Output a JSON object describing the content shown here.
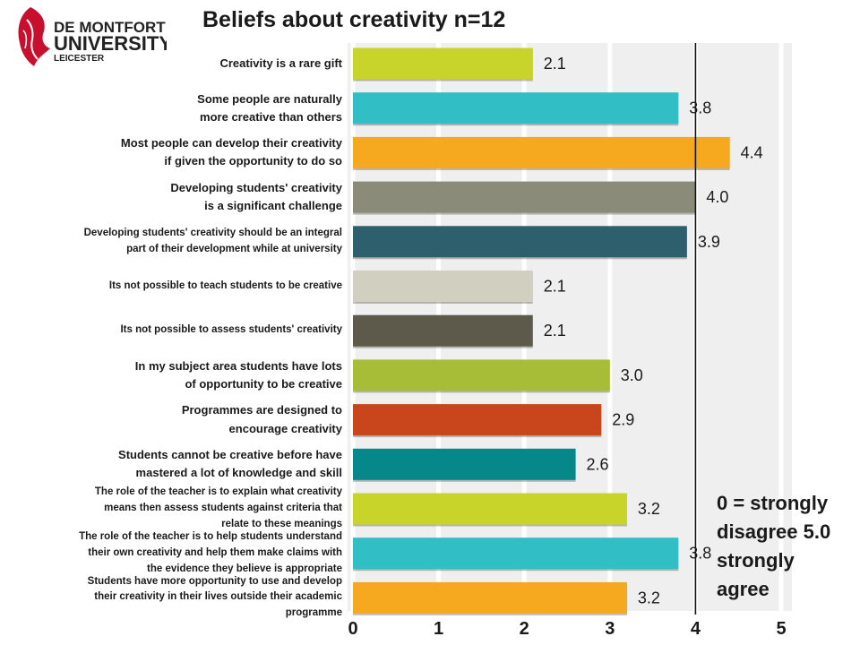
{
  "logo": {
    "line1": "DE MONTFORT",
    "line2": "UNIVERSITY",
    "line3": "LEICESTER",
    "icon": "dmu-crest-icon"
  },
  "legend_note": "0 = strongly disagree 5.0 strongly agree",
  "chart_data": {
    "type": "bar",
    "orientation": "horizontal",
    "title": "Beliefs about creativity  n=12",
    "xlim": [
      0,
      5
    ],
    "xticks": [
      "0",
      "1",
      "2",
      "3",
      "4",
      "5"
    ],
    "reference_line": 4,
    "grid": true,
    "categories": [
      "Creativity is a rare gift",
      "Some people are naturally more creative than others",
      "Most people can develop their creativity if given the opportunity to do so",
      "Developing students' creativity is a significant challenge",
      "Developing students' creativity should be an integral part of their development while at university",
      "Its not possible to teach students to be creative",
      "Its not possible to assess students' creativity",
      "In my subject area students have lots of opportunity to be creative",
      "Programmes are designed to encourage creativity",
      "Students cannot be creative before have mastered a lot of knowledge and skill",
      "The role of the teacher is to explain what creativity means  then assess students against criteria that relate to these meanings",
      "The role of the teacher is to help students understand their own creativity and help them make claims with the evidence they believe is appropriate",
      "Students have more opportunity to use and develop their creativity in their lives outside their academic programme"
    ],
    "category_lines": [
      [
        "Creativity is a rare gift"
      ],
      [
        "Some people are naturally",
        "more creative than others"
      ],
      [
        "Most people can develop their creativity",
        "if given the opportunity to do so"
      ],
      [
        "Developing students' creativity",
        "is a significant challenge"
      ],
      [
        "Developing students' creativity should be an integral",
        "part of their development while at university"
      ],
      [
        "Its not possible to teach students to be creative"
      ],
      [
        "Its not possible to assess students' creativity"
      ],
      [
        "In my subject area students have lots",
        "of opportunity to be creative"
      ],
      [
        "Programmes are designed to",
        "encourage creativity"
      ],
      [
        "Students cannot be creative before have",
        "mastered a lot of knowledge and skill"
      ],
      [
        "The role of the teacher is to explain what creativity",
        "means  then assess students against criteria that",
        "relate to these meanings"
      ],
      [
        "The role of the teacher is to help students understand",
        "their own creativity and help them make claims with",
        "the evidence they believe is appropriate"
      ],
      [
        "Students have more opportunity to use and develop",
        "their creativity in their lives outside their academic",
        "programme"
      ]
    ],
    "values": [
      2.1,
      3.8,
      4.4,
      4.0,
      3.9,
      2.1,
      2.1,
      3.0,
      2.9,
      2.6,
      3.2,
      3.8,
      3.2
    ],
    "value_labels": [
      "2.1",
      "3.8",
      "4.4",
      "4.0",
      "3.9",
      "2.1",
      "2.1",
      "3.0",
      "2.9",
      "2.6",
      "3.2",
      "3.8",
      "3.2"
    ],
    "colors": [
      "#c8d42a",
      "#31bec4",
      "#f6a81f",
      "#8a8b79",
      "#2e5f6d",
      "#d0cfc0",
      "#5d5a4b",
      "#a7bd37",
      "#c9451c",
      "#06878a",
      "#c8d42a",
      "#31bec4",
      "#f6a81f"
    ]
  }
}
